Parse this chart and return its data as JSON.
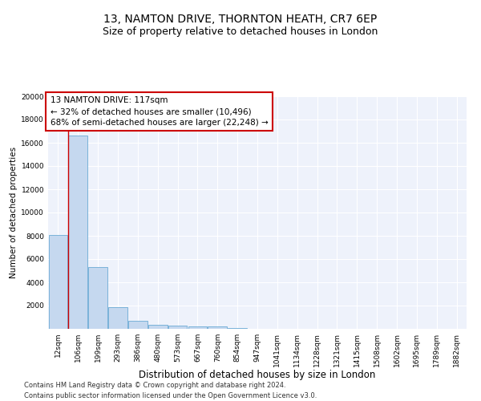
{
  "title": "13, NAMTON DRIVE, THORNTON HEATH, CR7 6EP",
  "subtitle": "Size of property relative to detached houses in London",
  "xlabel": "Distribution of detached houses by size in London",
  "ylabel": "Number of detached properties",
  "bin_labels": [
    "12sqm",
    "106sqm",
    "199sqm",
    "293sqm",
    "386sqm",
    "480sqm",
    "573sqm",
    "667sqm",
    "760sqm",
    "854sqm",
    "947sqm",
    "1041sqm",
    "1134sqm",
    "1228sqm",
    "1321sqm",
    "1415sqm",
    "1508sqm",
    "1602sqm",
    "1695sqm",
    "1789sqm",
    "1882sqm"
  ],
  "bar_heights": [
    8100,
    16600,
    5300,
    1850,
    700,
    350,
    270,
    220,
    180,
    100,
    0,
    0,
    0,
    0,
    0,
    0,
    0,
    0,
    0,
    0,
    0
  ],
  "bar_color": "#c5d8ef",
  "bar_edge_color": "#6aaad4",
  "vline_x": 0.5,
  "vline_color": "#cc0000",
  "annotation_text": "13 NAMTON DRIVE: 117sqm\n← 32% of detached houses are smaller (10,496)\n68% of semi-detached houses are larger (22,248) →",
  "annotation_box_color": "#ffffff",
  "annotation_box_edge": "#cc0000",
  "ylim": [
    0,
    20000
  ],
  "yticks": [
    0,
    2000,
    4000,
    6000,
    8000,
    10000,
    12000,
    14000,
    16000,
    18000,
    20000
  ],
  "background_color": "#eef2fb",
  "footer": "Contains HM Land Registry data © Crown copyright and database right 2024.\nContains public sector information licensed under the Open Government Licence v3.0.",
  "title_fontsize": 10,
  "subtitle_fontsize": 9,
  "xlabel_fontsize": 8.5,
  "ylabel_fontsize": 7.5,
  "tick_fontsize": 6.5,
  "annotation_fontsize": 7.5,
  "footer_fontsize": 6
}
